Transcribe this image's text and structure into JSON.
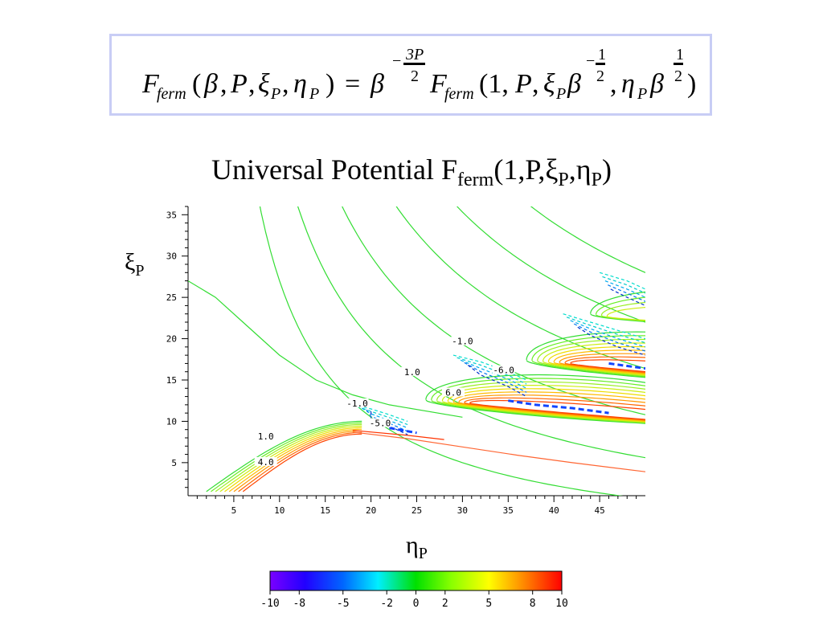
{
  "formula": {
    "lhs_F": "F",
    "lhs_sub": "ferm",
    "lhs_open": "(",
    "lhs_beta": "β",
    "lhs_sep1": ",",
    "lhs_P": "P",
    "lhs_sep2": ",",
    "lhs_xi": "ξ",
    "lhs_xi_sub": "P",
    "lhs_sep3": ",",
    "lhs_eta": "η",
    "lhs_eta_sub": "P",
    "lhs_close": ")",
    "equals": "=",
    "rhs_beta": "β",
    "exp1_minus": "−",
    "exp1_num": "3P",
    "exp1_den": "2",
    "rhs_F": "F",
    "rhs_sub": "ferm",
    "rhs_open": "(1,",
    "rhs_P": "P",
    "rhs_sep": ",",
    "rhs_xi": "ξ",
    "rhs_xi_sub": "P",
    "rhs_beta2": "β",
    "exp2_minus": "−",
    "exp2_num": "1",
    "exp2_den": "2",
    "rhs_sep2": ",",
    "rhs_eta": "η",
    "rhs_eta_sub": "P",
    "rhs_beta3": "β",
    "exp3_num": "1",
    "exp3_den": "2",
    "rhs_close": ")"
  },
  "title": {
    "main": "Universal Potential F",
    "sub": "ferm",
    "rest": "(1,P,ξ",
    "sub2": "P",
    "rest2": ",η",
    "sub3": "P",
    "end": ")"
  },
  "axes": {
    "y_symbol": "ξ",
    "y_sub": "P",
    "x_symbol": "η",
    "x_sub": "P"
  },
  "chart_data": {
    "type": "contour",
    "x": {
      "range": [
        0,
        50
      ],
      "ticks": [
        5,
        10,
        15,
        20,
        25,
        30,
        35,
        40,
        45
      ]
    },
    "y": {
      "range": [
        1,
        36
      ],
      "ticks": [
        5,
        10,
        15,
        20,
        25,
        30,
        35
      ]
    },
    "contour_labels": [
      {
        "text": "1.0",
        "x": 8.5,
        "y": 8.0
      },
      {
        "text": "4.0",
        "x": 8.5,
        "y": 4.9
      },
      {
        "text": "-1.0",
        "x": 18.5,
        "y": 12.0
      },
      {
        "text": "-5.0",
        "x": 21.0,
        "y": 9.6
      },
      {
        "text": "1.0",
        "x": 24.5,
        "y": 15.8
      },
      {
        "text": "6.0",
        "x": 29.0,
        "y": 13.3
      },
      {
        "text": "-1.0",
        "x": 30.0,
        "y": 19.5
      },
      {
        "text": "-6.0",
        "x": 34.5,
        "y": 16.0
      }
    ],
    "colorbar": {
      "range": [
        -10,
        10
      ],
      "ticks": [
        "-10",
        "-8",
        "-5",
        "-2",
        "0",
        "2",
        "5",
        "8",
        "10"
      ]
    }
  }
}
